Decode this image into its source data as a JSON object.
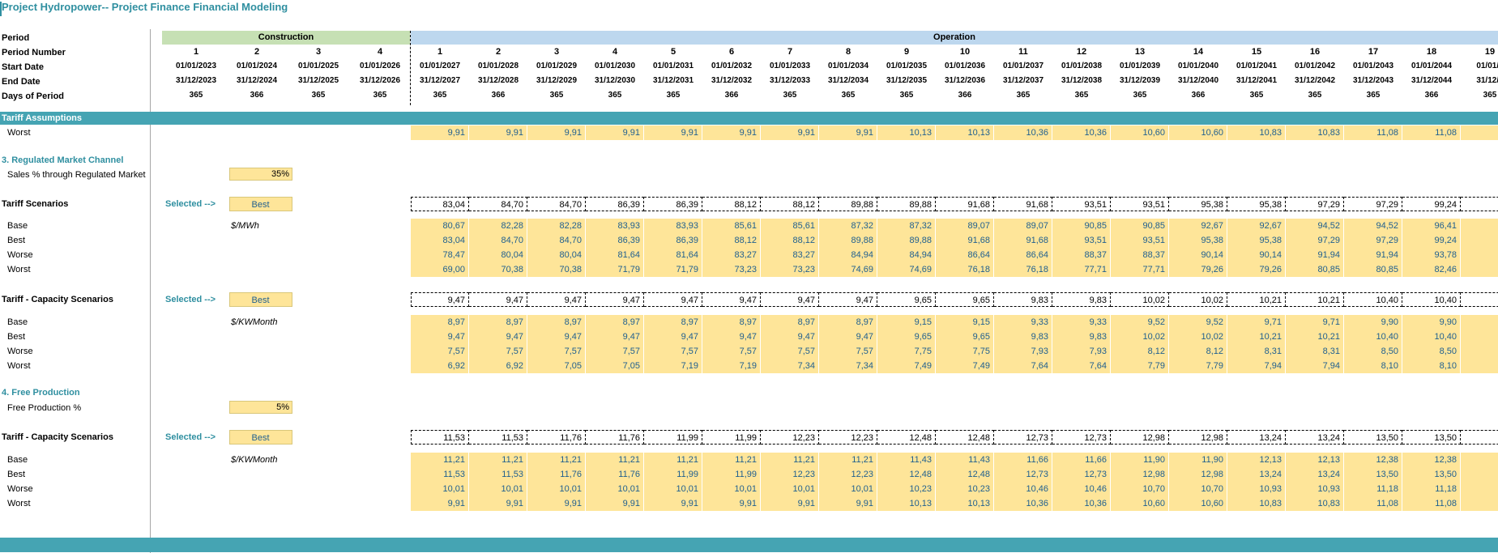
{
  "title": "Project Hydropower-- Project Finance Financial Modeling",
  "row_labels": {
    "period": "Period",
    "period_number": "Period Number",
    "start_date": "Start Date",
    "end_date": "End Date",
    "days": "Days of Period"
  },
  "phases": {
    "construction": "Construction",
    "operation": "Operation"
  },
  "construction": {
    "numbers": [
      "1",
      "2",
      "3",
      "4"
    ],
    "start": [
      "01/01/2023",
      "01/01/2024",
      "01/01/2025",
      "01/01/2026"
    ],
    "end": [
      "31/12/2023",
      "31/12/2024",
      "31/12/2025",
      "31/12/2026"
    ],
    "days": [
      "365",
      "366",
      "365",
      "365"
    ]
  },
  "operation": {
    "numbers": [
      "1",
      "2",
      "3",
      "4",
      "5",
      "6",
      "7",
      "8",
      "9",
      "10",
      "11",
      "12",
      "13",
      "14",
      "15",
      "16",
      "17",
      "18",
      "19"
    ],
    "start": [
      "01/01/2027",
      "01/01/2028",
      "01/01/2029",
      "01/01/2030",
      "01/01/2031",
      "01/01/2032",
      "01/01/2033",
      "01/01/2034",
      "01/01/2035",
      "01/01/2036",
      "01/01/2037",
      "01/01/2038",
      "01/01/2039",
      "01/01/2040",
      "01/01/2041",
      "01/01/2042",
      "01/01/2043",
      "01/01/2044",
      "01/01/2"
    ],
    "end": [
      "31/12/2027",
      "31/12/2028",
      "31/12/2029",
      "31/12/2030",
      "31/12/2031",
      "31/12/2032",
      "31/12/2033",
      "31/12/2034",
      "31/12/2035",
      "31/12/2036",
      "31/12/2037",
      "31/12/2038",
      "31/12/2039",
      "31/12/2040",
      "31/12/2041",
      "31/12/2042",
      "31/12/2043",
      "31/12/2044",
      "31/12/2"
    ],
    "days": [
      "365",
      "366",
      "365",
      "365",
      "365",
      "366",
      "365",
      "365",
      "365",
      "366",
      "365",
      "365",
      "365",
      "366",
      "365",
      "365",
      "365",
      "366",
      "365"
    ]
  },
  "tariff_assumptions": {
    "label": "Tariff Assumptions",
    "worst_label": "Worst",
    "worst": [
      "9,91",
      "9,91",
      "9,91",
      "9,91",
      "9,91",
      "9,91",
      "9,91",
      "9,91",
      "10,13",
      "10,13",
      "10,36",
      "10,36",
      "10,60",
      "10,60",
      "10,83",
      "10,83",
      "11,08",
      "11,08",
      "11"
    ]
  },
  "regulated": {
    "section": "3. Regulated Market Channel",
    "label": "Sales % through Regulated Market",
    "value": "35%"
  },
  "tariff_scenarios": {
    "label": "Tariff Scenarios",
    "selected_label": "Selected -->",
    "selected": "Best",
    "unit": "$/MWh",
    "selected_values": [
      "83,04",
      "84,70",
      "84,70",
      "86,39",
      "86,39",
      "88,12",
      "88,12",
      "89,88",
      "89,88",
      "91,68",
      "91,68",
      "93,51",
      "93,51",
      "95,38",
      "95,38",
      "97,29",
      "97,29",
      "99,24",
      "99"
    ],
    "rows": [
      {
        "label": "Base",
        "values": [
          "80,67",
          "82,28",
          "82,28",
          "83,93",
          "83,93",
          "85,61",
          "85,61",
          "87,32",
          "87,32",
          "89,07",
          "89,07",
          "90,85",
          "90,85",
          "92,67",
          "92,67",
          "94,52",
          "94,52",
          "96,41",
          "96"
        ]
      },
      {
        "label": "Best",
        "values": [
          "83,04",
          "84,70",
          "84,70",
          "86,39",
          "86,39",
          "88,12",
          "88,12",
          "89,88",
          "89,88",
          "91,68",
          "91,68",
          "93,51",
          "93,51",
          "95,38",
          "95,38",
          "97,29",
          "97,29",
          "99,24",
          "99"
        ]
      },
      {
        "label": "Worse",
        "values": [
          "78,47",
          "80,04",
          "80,04",
          "81,64",
          "81,64",
          "83,27",
          "83,27",
          "84,94",
          "84,94",
          "86,64",
          "86,64",
          "88,37",
          "88,37",
          "90,14",
          "90,14",
          "91,94",
          "91,94",
          "93,78",
          "93"
        ]
      },
      {
        "label": "Worst",
        "values": [
          "69,00",
          "70,38",
          "70,38",
          "71,79",
          "71,79",
          "73,23",
          "73,23",
          "74,69",
          "74,69",
          "76,18",
          "76,18",
          "77,71",
          "77,71",
          "79,26",
          "79,26",
          "80,85",
          "80,85",
          "82,46",
          "82"
        ]
      }
    ]
  },
  "capacity1": {
    "label": "Tariff - Capacity Scenarios",
    "selected_label": "Selected -->",
    "selected": "Best",
    "unit": "$/KWMonth",
    "selected_values": [
      "9,47",
      "9,47",
      "9,47",
      "9,47",
      "9,47",
      "9,47",
      "9,47",
      "9,47",
      "9,65",
      "9,65",
      "9,83",
      "9,83",
      "10,02",
      "10,02",
      "10,21",
      "10,21",
      "10,40",
      "10,40",
      "10"
    ],
    "rows": [
      {
        "label": "Base",
        "values": [
          "8,97",
          "8,97",
          "8,97",
          "8,97",
          "8,97",
          "8,97",
          "8,97",
          "8,97",
          "9,15",
          "9,15",
          "9,33",
          "9,33",
          "9,52",
          "9,52",
          "9,71",
          "9,71",
          "9,90",
          "9,90",
          "10"
        ]
      },
      {
        "label": "Best",
        "values": [
          "9,47",
          "9,47",
          "9,47",
          "9,47",
          "9,47",
          "9,47",
          "9,47",
          "9,47",
          "9,65",
          "9,65",
          "9,83",
          "9,83",
          "10,02",
          "10,02",
          "10,21",
          "10,21",
          "10,40",
          "10,40",
          "10"
        ]
      },
      {
        "label": "Worse",
        "values": [
          "7,57",
          "7,57",
          "7,57",
          "7,57",
          "7,57",
          "7,57",
          "7,57",
          "7,57",
          "7,75",
          "7,75",
          "7,93",
          "7,93",
          "8,12",
          "8,12",
          "8,31",
          "8,31",
          "8,50",
          "8,50",
          "8"
        ]
      },
      {
        "label": "Worst",
        "values": [
          "6,92",
          "6,92",
          "7,05",
          "7,05",
          "7,19",
          "7,19",
          "7,34",
          "7,34",
          "7,49",
          "7,49",
          "7,64",
          "7,64",
          "7,79",
          "7,79",
          "7,94",
          "7,94",
          "8,10",
          "8,10",
          "8"
        ]
      }
    ]
  },
  "free_production": {
    "section": "4. Free Production",
    "label": "Free Production %",
    "value": "5%"
  },
  "capacity2": {
    "label": "Tariff - Capacity Scenarios",
    "selected_label": "Selected -->",
    "selected": "Best",
    "unit": "$/KWMonth",
    "selected_values": [
      "11,53",
      "11,53",
      "11,76",
      "11,76",
      "11,99",
      "11,99",
      "12,23",
      "12,23",
      "12,48",
      "12,48",
      "12,73",
      "12,73",
      "12,98",
      "12,98",
      "13,24",
      "13,24",
      "13,50",
      "13,50",
      "13"
    ],
    "rows": [
      {
        "label": "Base",
        "values": [
          "11,21",
          "11,21",
          "11,21",
          "11,21",
          "11,21",
          "11,21",
          "11,21",
          "11,21",
          "11,43",
          "11,43",
          "11,66",
          "11,66",
          "11,90",
          "11,90",
          "12,13",
          "12,13",
          "12,38",
          "12,38",
          "12"
        ]
      },
      {
        "label": "Best",
        "values": [
          "11,53",
          "11,53",
          "11,76",
          "11,76",
          "11,99",
          "11,99",
          "12,23",
          "12,23",
          "12,48",
          "12,48",
          "12,73",
          "12,73",
          "12,98",
          "12,98",
          "13,24",
          "13,24",
          "13,50",
          "13,50",
          "13"
        ]
      },
      {
        "label": "Worse",
        "values": [
          "10,01",
          "10,01",
          "10,01",
          "10,01",
          "10,01",
          "10,01",
          "10,01",
          "10,01",
          "10,23",
          "10,23",
          "10,46",
          "10,46",
          "10,70",
          "10,70",
          "10,93",
          "10,93",
          "11,18",
          "11,18",
          "11"
        ]
      },
      {
        "label": "Worst",
        "values": [
          "9,91",
          "9,91",
          "9,91",
          "9,91",
          "9,91",
          "9,91",
          "9,91",
          "9,91",
          "10,13",
          "10,13",
          "10,36",
          "10,36",
          "10,60",
          "10,60",
          "10,83",
          "10,83",
          "11,08",
          "11,08",
          "11"
        ]
      }
    ]
  },
  "colors": {
    "accent": "#45a4b3",
    "input_fill": "#fee599",
    "construction": "#c6e0b4",
    "operation": "#bdd7ee"
  }
}
